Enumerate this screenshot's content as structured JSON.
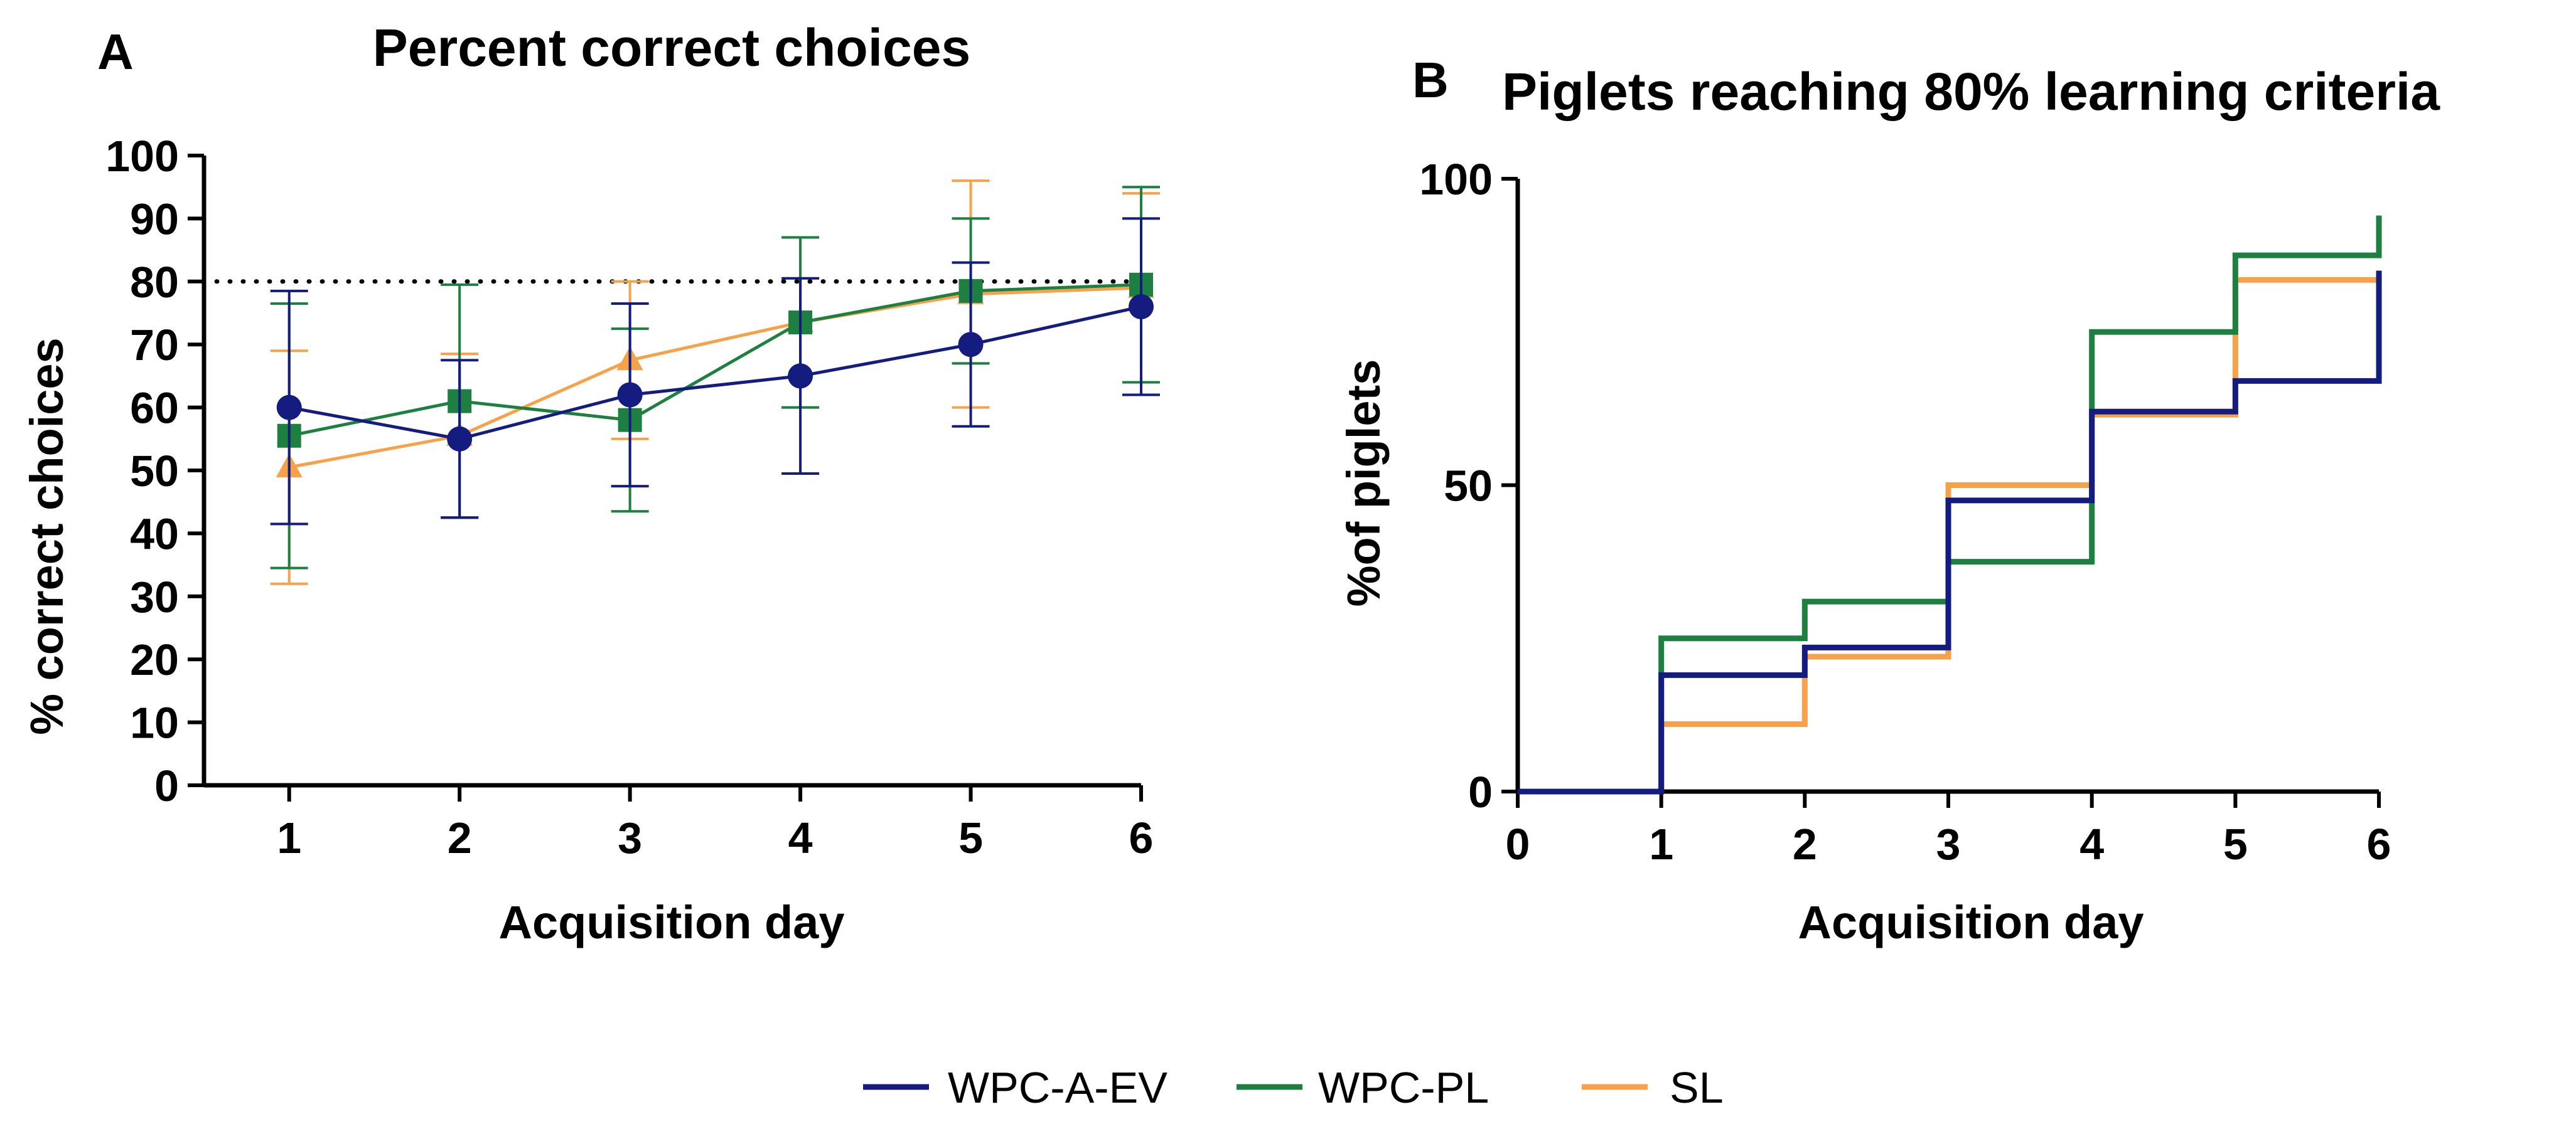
{
  "colors": {
    "WPC-A-EV": "#141c80",
    "WPC-PL": "#1d8041",
    "SL": "#f7a14a",
    "reference": "#000000"
  },
  "chart_data": [
    {
      "panel": "A",
      "type": "line",
      "title": "Percent correct choices",
      "xlabel": "Acquisition day",
      "ylabel": "% correct choices",
      "x": [
        1,
        2,
        3,
        4,
        5,
        6
      ],
      "xlim": [
        0.5,
        6
      ],
      "ylim": [
        0,
        100
      ],
      "yticks": [
        0,
        10,
        20,
        30,
        40,
        50,
        60,
        70,
        80,
        90,
        100
      ],
      "reference_line": 80,
      "series": [
        {
          "name": "WPC-A-EV",
          "marker": "circle",
          "values": [
            60,
            55,
            62,
            65,
            70,
            76
          ],
          "err": [
            18.5,
            12.5,
            14.5,
            15.5,
            13,
            14
          ]
        },
        {
          "name": "WPC-PL",
          "marker": "square",
          "values": [
            55.5,
            61,
            58,
            73.5,
            78.5,
            79.5
          ],
          "err": [
            21,
            18.5,
            14.5,
            13.5,
            11.5,
            15.5
          ]
        },
        {
          "name": "SL",
          "marker": "triangle",
          "values": [
            50.5,
            55.5,
            67.5,
            73.5,
            78,
            79
          ],
          "err": [
            18.5,
            13,
            12.5,
            13.5,
            18,
            15
          ]
        }
      ]
    },
    {
      "panel": "B",
      "type": "line",
      "title": "Piglets reaching 80% learning criteria",
      "xlabel": "Acquisition day",
      "ylabel": "%of piglets",
      "xlim": [
        0,
        6
      ],
      "ylim": [
        0,
        100
      ],
      "xticks": [
        0,
        1,
        2,
        3,
        4,
        5,
        6
      ],
      "yticks": [
        0,
        50,
        100
      ],
      "step": true,
      "series": [
        {
          "name": "WPC-A-EV",
          "x": [
            0,
            1,
            2,
            3,
            4,
            5,
            6
          ],
          "values": [
            0,
            19,
            23.5,
            47.5,
            62,
            67,
            85
          ]
        },
        {
          "name": "WPC-PL",
          "x": [
            0,
            1,
            2,
            3,
            4,
            5,
            6
          ],
          "values": [
            0,
            25,
            31,
            37.5,
            75,
            87.5,
            94
          ]
        },
        {
          "name": "SL",
          "x": [
            0,
            1,
            2,
            3,
            4,
            5,
            6
          ],
          "values": [
            0,
            11,
            22,
            50,
            61.5,
            83.5,
            83.5
          ]
        }
      ]
    }
  ],
  "legend": [
    "WPC-A-EV",
    "WPC-PL",
    "SL"
  ]
}
